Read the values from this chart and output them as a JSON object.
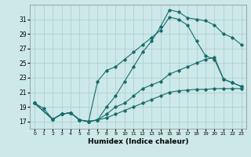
{
  "title": "",
  "xlabel": "Humidex (Indice chaleur)",
  "ylabel": "",
  "background_color": "#cce8e8",
  "grid_color": "#aacccc",
  "line_color": "#1a6b6b",
  "xlim": [
    -0.5,
    23.5
  ],
  "ylim": [
    16.0,
    33.0
  ],
  "xticks": [
    0,
    1,
    2,
    3,
    4,
    5,
    6,
    7,
    8,
    9,
    10,
    11,
    12,
    13,
    14,
    15,
    16,
    17,
    18,
    19,
    20,
    21,
    22,
    23
  ],
  "yticks": [
    17,
    19,
    21,
    23,
    25,
    27,
    29,
    31
  ],
  "lines": [
    {
      "x": [
        0,
        1,
        2,
        3,
        4,
        5,
        6,
        7,
        8,
        9,
        10,
        11,
        12,
        13,
        14,
        15,
        16,
        17,
        18,
        19,
        20,
        21,
        22,
        23
      ],
      "y": [
        19.5,
        18.8,
        17.3,
        18.0,
        18.2,
        17.2,
        17.0,
        17.2,
        19.0,
        20.5,
        22.5,
        24.5,
        26.5,
        28.0,
        30.0,
        32.3,
        32.0,
        31.2,
        31.0,
        30.8,
        30.2,
        29.0,
        28.5,
        27.5
      ]
    },
    {
      "x": [
        0,
        2,
        3,
        4,
        5,
        6,
        7,
        8,
        9,
        10,
        11,
        12,
        13,
        14,
        15,
        16,
        17,
        18,
        19,
        20,
        21,
        22,
        23
      ],
      "y": [
        19.5,
        17.3,
        18.0,
        18.2,
        17.2,
        17.0,
        22.5,
        24.0,
        24.5,
        25.5,
        26.5,
        27.5,
        28.5,
        29.5,
        31.3,
        31.0,
        30.2,
        28.0,
        26.0,
        25.5,
        22.8,
        22.3,
        21.8
      ]
    },
    {
      "x": [
        0,
        2,
        3,
        4,
        5,
        6,
        7,
        8,
        9,
        10,
        11,
        12,
        13,
        14,
        15,
        16,
        17,
        18,
        19,
        20,
        21,
        22,
        23
      ],
      "y": [
        19.5,
        17.3,
        18.0,
        18.2,
        17.2,
        17.0,
        17.2,
        18.0,
        19.0,
        19.5,
        20.5,
        21.5,
        22.0,
        22.5,
        23.5,
        24.0,
        24.5,
        25.0,
        25.5,
        25.8,
        22.8,
        22.3,
        21.8
      ]
    },
    {
      "x": [
        0,
        2,
        3,
        4,
        5,
        6,
        7,
        8,
        9,
        10,
        11,
        12,
        13,
        14,
        15,
        16,
        17,
        18,
        19,
        20,
        21,
        22,
        23
      ],
      "y": [
        19.5,
        17.3,
        18.0,
        18.2,
        17.2,
        17.0,
        17.2,
        17.5,
        18.0,
        18.5,
        19.0,
        19.5,
        20.0,
        20.5,
        21.0,
        21.2,
        21.3,
        21.4,
        21.4,
        21.5,
        21.5,
        21.5,
        21.5
      ]
    }
  ]
}
